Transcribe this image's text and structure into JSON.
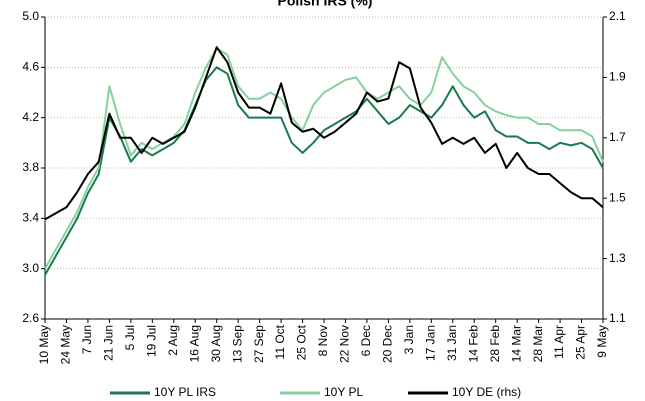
{
  "chart_data": {
    "type": "line",
    "title": "Polish IRS (%)",
    "categories": [
      "10 May",
      null,
      "24 May",
      null,
      "7 Jun",
      null,
      "21 Jun",
      null,
      "5 Jul",
      null,
      "19 Jul",
      null,
      "2 Aug",
      null,
      "16 Aug",
      null,
      "30 Aug",
      null,
      "13 Sep",
      null,
      "27 Sep",
      null,
      "11 Oct",
      null,
      "25 Oct",
      null,
      "8 Nov",
      null,
      "22 Nov",
      null,
      "6 Dec",
      null,
      "20 Dec",
      null,
      "3 Jan",
      null,
      "17 Jan",
      null,
      "31 Jan",
      null,
      "14 Feb",
      null,
      "28 Feb",
      null,
      "14 Mar",
      null,
      "28 Mar",
      null,
      "11 Apr",
      null,
      "25 Apr",
      null,
      "9 May"
    ],
    "series": [
      {
        "name": "10Y PL IRS",
        "color": "#1b7a4e",
        "values": [
          2.95,
          3.1,
          3.25,
          3.4,
          3.6,
          3.75,
          4.2,
          4.05,
          3.85,
          3.95,
          3.9,
          3.95,
          4.0,
          4.1,
          4.3,
          4.5,
          4.6,
          4.55,
          4.3,
          4.2,
          4.2,
          4.2,
          4.2,
          4.0,
          3.92,
          4.0,
          4.1,
          4.15,
          4.2,
          4.25,
          4.35,
          4.25,
          4.15,
          4.2,
          4.3,
          4.25,
          4.2,
          4.3,
          4.45,
          4.3,
          4.2,
          4.25,
          4.1,
          4.05,
          4.05,
          4.0,
          4.0,
          3.95,
          4.0,
          3.98,
          4.0,
          3.95,
          3.8
        ]
      },
      {
        "name": "10Y PL",
        "color": "#86d19e",
        "values": [
          3.0,
          3.15,
          3.3,
          3.45,
          3.65,
          3.8,
          4.45,
          4.15,
          3.9,
          4.0,
          3.95,
          4.0,
          4.05,
          4.15,
          4.4,
          4.6,
          4.75,
          4.7,
          4.45,
          4.35,
          4.35,
          4.4,
          4.35,
          4.2,
          4.1,
          4.3,
          4.4,
          4.45,
          4.5,
          4.52,
          4.4,
          4.35,
          4.4,
          4.45,
          4.35,
          4.3,
          4.4,
          4.68,
          4.55,
          4.45,
          4.4,
          4.3,
          4.25,
          4.22,
          4.2,
          4.2,
          4.15,
          4.15,
          4.1,
          4.1,
          4.1,
          4.05,
          3.85
        ]
      },
      {
        "name": "10Y DE (rhs)",
        "color": "#000000",
        "axis": "y2",
        "values": [
          1.43,
          1.45,
          1.47,
          1.52,
          1.58,
          1.62,
          1.78,
          1.7,
          1.7,
          1.65,
          1.7,
          1.68,
          1.7,
          1.72,
          1.8,
          1.9,
          2.0,
          1.95,
          1.85,
          1.8,
          1.8,
          1.78,
          1.88,
          1.75,
          1.72,
          1.73,
          1.7,
          1.72,
          1.75,
          1.78,
          1.85,
          1.82,
          1.83,
          1.95,
          1.93,
          1.8,
          1.75,
          1.68,
          1.7,
          1.68,
          1.7,
          1.65,
          1.68,
          1.6,
          1.65,
          1.6,
          1.58,
          1.58,
          1.55,
          1.52,
          1.5,
          1.5,
          1.47
        ]
      }
    ],
    "ylim": [
      2.6,
      5.0
    ],
    "yticks": [
      2.6,
      {
        "value": 3,
        "label": "3.0"
      },
      3.4,
      3.8,
      4.2,
      4.6,
      {
        "value": 5,
        "label": "5.0"
      }
    ],
    "y2lim": [
      1.1,
      2.1
    ],
    "y2ticks": [
      1.1,
      1.3,
      1.5,
      1.7,
      1.9,
      2.1
    ],
    "grid": true,
    "legend": "bottom"
  }
}
